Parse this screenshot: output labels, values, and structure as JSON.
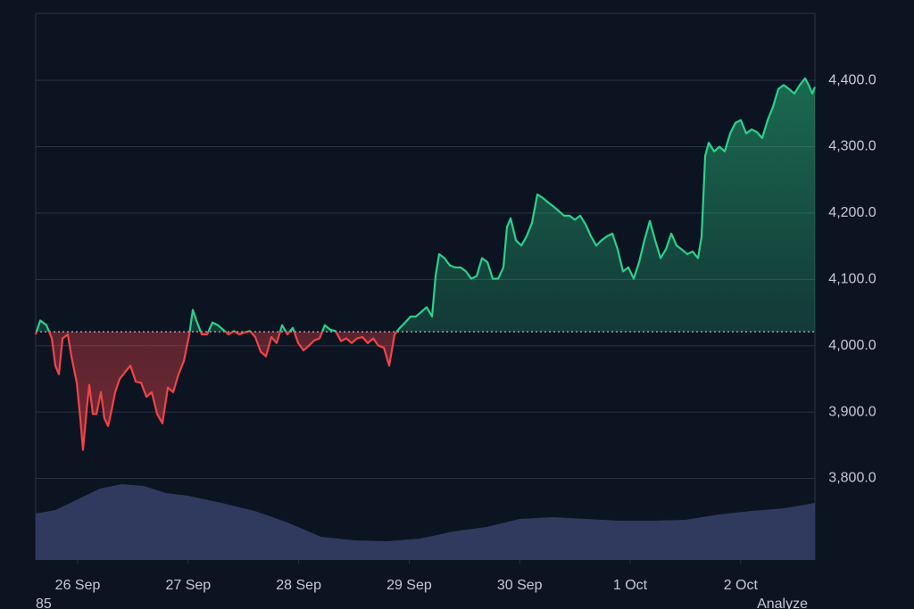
{
  "chart_data": {
    "type": "line",
    "x": [
      -0.38,
      -0.339,
      -0.283,
      -0.234,
      -0.202,
      -0.17,
      -0.137,
      -0.089,
      -0.057,
      -0.008,
      0.024,
      0.048,
      0.081,
      0.105,
      0.137,
      0.17,
      0.21,
      0.242,
      0.275,
      0.307,
      0.339,
      0.38,
      0.428,
      0.477,
      0.525,
      0.574,
      0.622,
      0.67,
      0.719,
      0.767,
      0.816,
      0.864,
      0.913,
      0.961,
      1.01,
      1.042,
      1.074,
      1.123,
      1.171,
      1.22,
      1.268,
      1.317,
      1.365,
      1.414,
      1.462,
      1.511,
      1.559,
      1.607,
      1.656,
      1.704,
      1.753,
      1.801,
      1.85,
      1.898,
      1.947,
      1.995,
      2.044,
      2.092,
      2.141,
      2.189,
      2.237,
      2.286,
      2.334,
      2.383,
      2.431,
      2.48,
      2.528,
      2.577,
      2.625,
      2.674,
      2.722,
      2.771,
      2.819,
      2.868,
      2.916,
      2.964,
      3.013,
      3.061,
      3.11,
      3.158,
      3.207,
      3.239,
      3.271,
      3.32,
      3.368,
      3.417,
      3.465,
      3.514,
      3.562,
      3.611,
      3.659,
      3.708,
      3.756,
      3.805,
      3.853,
      3.885,
      3.918,
      3.966,
      4.015,
      4.063,
      4.111,
      4.16,
      4.208,
      4.257,
      4.305,
      4.354,
      4.402,
      4.451,
      4.499,
      4.548,
      4.596,
      4.645,
      4.693,
      4.742,
      4.79,
      4.839,
      4.887,
      4.935,
      4.984,
      5.032,
      5.081,
      5.129,
      5.178,
      5.226,
      5.275,
      5.323,
      5.372,
      5.42,
      5.468,
      5.517,
      5.565,
      5.614,
      5.646,
      5.679,
      5.711,
      5.759,
      5.808,
      5.856,
      5.905,
      5.953,
      6.002,
      6.05,
      6.099,
      6.147,
      6.195,
      6.244,
      6.292,
      6.341,
      6.389,
      6.438,
      6.486,
      6.535,
      6.583,
      6.616,
      6.648,
      6.672
    ],
    "values": [
      4017,
      4038,
      4031,
      4011,
      3970,
      3957,
      4011,
      4017,
      3984,
      3944,
      3890,
      3843,
      3903,
      3941,
      3897,
      3897,
      3930,
      3890,
      3879,
      3903,
      3930,
      3950,
      3960,
      3970,
      3946,
      3944,
      3923,
      3930,
      3897,
      3883,
      3937,
      3930,
      3957,
      3977,
      4017,
      4054,
      4038,
      4017,
      4017,
      4035,
      4031,
      4024,
      4017,
      4022,
      4017,
      4020,
      4022,
      4013,
      3991,
      3984,
      4013,
      4004,
      4031,
      4017,
      4027,
      4004,
      3993,
      4000,
      4008,
      4011,
      4031,
      4024,
      4022,
      4007,
      4011,
      4004,
      4011,
      4013,
      4004,
      4011,
      4000,
      3997,
      3970,
      4017,
      4027,
      4035,
      4044,
      4044,
      4051,
      4058,
      4044,
      4105,
      4138,
      4132,
      4121,
      4118,
      4118,
      4112,
      4101,
      4105,
      4132,
      4126,
      4101,
      4101,
      4118,
      4179,
      4192,
      4159,
      4151,
      4165,
      4185,
      4228,
      4223,
      4216,
      4210,
      4203,
      4196,
      4196,
      4190,
      4196,
      4183,
      4165,
      4151,
      4159,
      4165,
      4169,
      4145,
      4112,
      4118,
      4101,
      4126,
      4159,
      4188,
      4159,
      4132,
      4145,
      4169,
      4151,
      4145,
      4138,
      4142,
      4132,
      4164,
      4286,
      4306,
      4293,
      4300,
      4293,
      4320,
      4336,
      4340,
      4320,
      4326,
      4322,
      4313,
      4340,
      4360,
      4387,
      4393,
      4387,
      4380,
      4393,
      4403,
      4393,
      4380,
      4390
    ],
    "baseline": 4021,
    "up_color": "#2bd18b",
    "down_color": "#f0444a",
    "volume": {
      "color": "#2f3a5e",
      "ylim": [
        0,
        613
      ],
      "x": [
        -0.38,
        -0.2,
        0,
        0.2,
        0.4,
        0.6,
        0.8,
        1,
        1.3,
        1.6,
        1.9,
        2.2,
        2.5,
        2.8,
        3.1,
        3.4,
        3.7,
        4,
        4.3,
        4.6,
        4.9,
        5.2,
        5.5,
        5.8,
        6.1,
        6.4,
        6.672
      ],
      "values": [
        52,
        56,
        68,
        80,
        85,
        83,
        75,
        72,
        64,
        55,
        42,
        26,
        22,
        21,
        24,
        32,
        37,
        46,
        48,
        46,
        44,
        44,
        45,
        51,
        55,
        58,
        64
      ]
    },
    "xlim": [
      -0.38,
      6.672
    ],
    "ylim": [
      3677,
      4501
    ],
    "xticks": [
      {
        "value": 0,
        "label": "26 Sep"
      },
      {
        "value": 1,
        "label": "27 Sep"
      },
      {
        "value": 2,
        "label": "28 Sep"
      },
      {
        "value": 3,
        "label": "29 Sep"
      },
      {
        "value": 4,
        "label": "30 Sep"
      },
      {
        "value": 5,
        "label": "1 Oct"
      },
      {
        "value": 6,
        "label": "2 Oct"
      }
    ],
    "yticks": [
      {
        "value": 3800,
        "label": "3,800.0"
      },
      {
        "value": 3900,
        "label": "3,900.0"
      },
      {
        "value": 4000,
        "label": "4,000.0"
      },
      {
        "value": 4100,
        "label": "4,100.0"
      },
      {
        "value": 4200,
        "label": "4,200.0"
      },
      {
        "value": 4300,
        "label": "4,300.0"
      },
      {
        "value": 4400,
        "label": "4,400.0"
      }
    ],
    "grid": true,
    "footer_left": "85",
    "footer_right": "Analyze"
  }
}
